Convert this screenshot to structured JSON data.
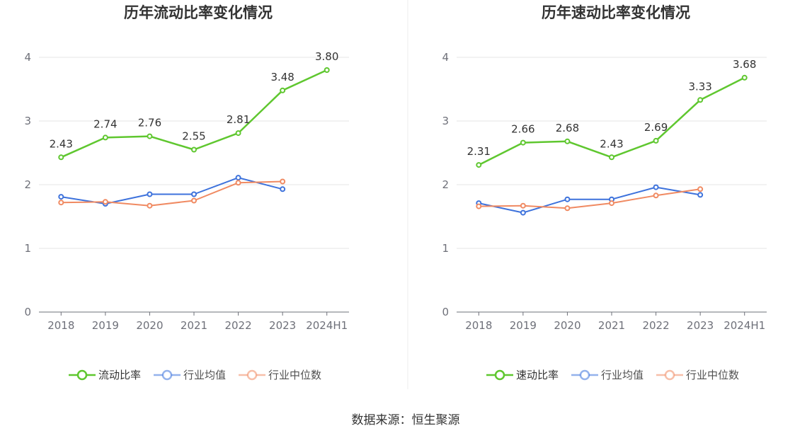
{
  "chart_data": [
    {
      "type": "line",
      "title": "历年流动比率变化情况",
      "categories": [
        "2018",
        "2019",
        "2020",
        "2021",
        "2022",
        "2023",
        "2024H1"
      ],
      "ylim": [
        0,
        4
      ],
      "yticks": [
        "0",
        "1",
        "2",
        "3",
        "4"
      ],
      "grid": true,
      "legend_position": "bottom",
      "series": [
        {
          "name": "流动比率",
          "color": "#5fc72f",
          "values": [
            2.43,
            2.74,
            2.76,
            2.55,
            2.81,
            3.48,
            3.8
          ],
          "labels": [
            "2.43",
            "2.74",
            "2.76",
            "2.55",
            "2.81",
            "3.48",
            "3.80"
          ]
        },
        {
          "name": "行业均值",
          "color": "#3d72dc",
          "values": [
            1.81,
            1.7,
            1.85,
            1.85,
            2.11,
            1.93,
            null
          ]
        },
        {
          "name": "行业中位数",
          "color": "#f08a62",
          "values": [
            1.72,
            1.73,
            1.67,
            1.75,
            2.03,
            2.05,
            null
          ]
        }
      ]
    },
    {
      "type": "line",
      "title": "历年速动比率变化情况",
      "categories": [
        "2018",
        "2019",
        "2020",
        "2021",
        "2022",
        "2023",
        "2024H1"
      ],
      "ylim": [
        0,
        4
      ],
      "yticks": [
        "0",
        "1",
        "2",
        "3",
        "4"
      ],
      "grid": true,
      "legend_position": "bottom",
      "series": [
        {
          "name": "速动比率",
          "color": "#5fc72f",
          "values": [
            2.31,
            2.66,
            2.68,
            2.43,
            2.69,
            3.33,
            3.68
          ],
          "labels": [
            "2.31",
            "2.66",
            "2.68",
            "2.43",
            "2.69",
            "3.33",
            "3.68"
          ]
        },
        {
          "name": "行业均值",
          "color": "#3d72dc",
          "values": [
            1.71,
            1.56,
            1.77,
            1.77,
            1.96,
            1.84,
            null
          ]
        },
        {
          "name": "行业中位数",
          "color": "#f08a62",
          "values": [
            1.66,
            1.67,
            1.63,
            1.71,
            1.83,
            1.93,
            null
          ]
        }
      ]
    }
  ],
  "footer": {
    "source": "数据来源：恒生聚源"
  }
}
